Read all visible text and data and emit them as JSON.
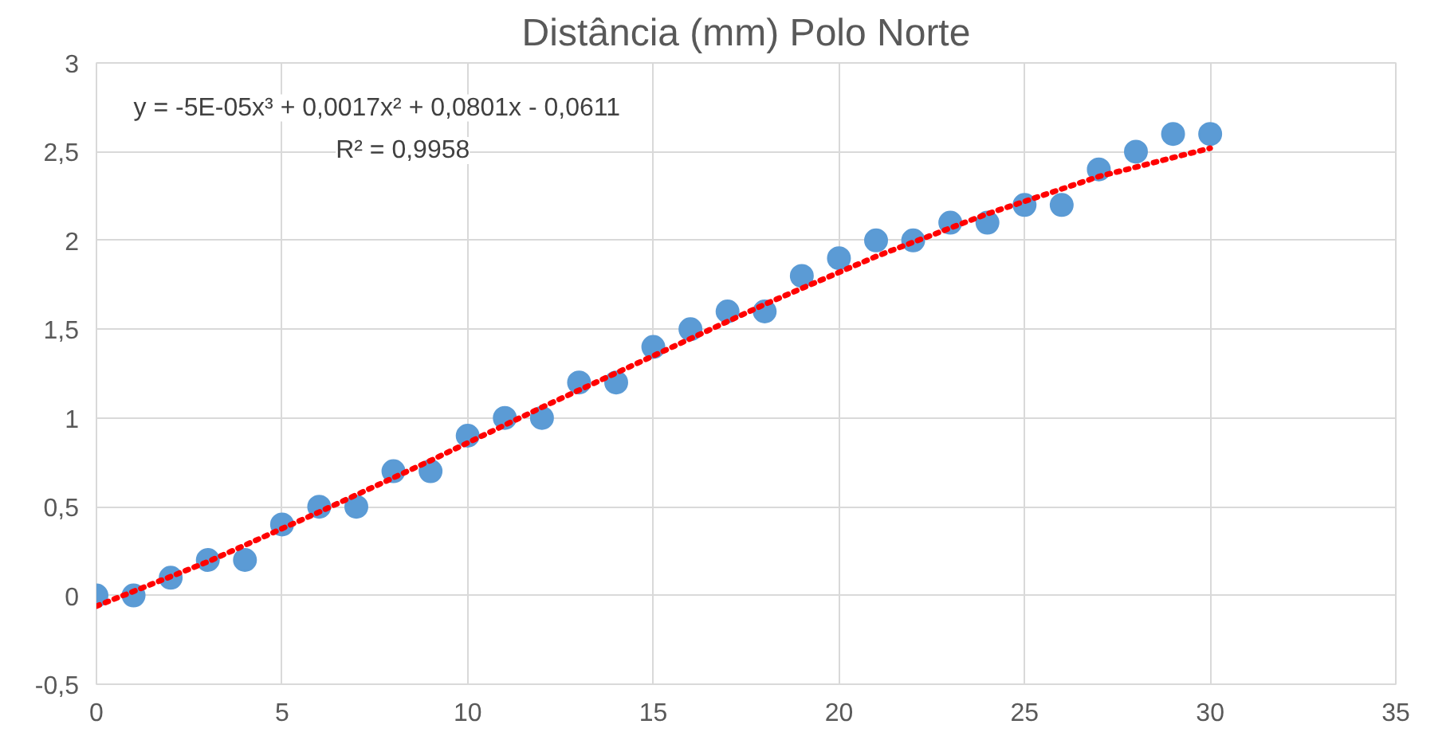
{
  "chart_data": {
    "type": "scatter",
    "title": "Distância (mm) Polo Norte",
    "xlim": [
      0,
      35
    ],
    "xticks": [
      0,
      5,
      10,
      15,
      20,
      25,
      30,
      35
    ],
    "ylim": [
      -0.5,
      3
    ],
    "yticks": [
      {
        "value": -0.5,
        "label": "-0,5"
      },
      0,
      {
        "value": 0.5,
        "label": "0,5"
      },
      1,
      {
        "value": 1.5,
        "label": "1,5"
      },
      2,
      {
        "value": 2.5,
        "label": "2,5"
      },
      3
    ],
    "grid": true,
    "annotations": [
      "y = -5E-05x³ + 0,0017x² + 0,0801x - 0,0611",
      "R² = 0,9958"
    ],
    "series": [
      {
        "marker": "circle",
        "color": "#5b9bd5",
        "x": [
          0,
          1,
          2,
          3,
          4,
          5,
          6,
          7,
          8,
          9,
          10,
          11,
          12,
          13,
          14,
          15,
          16,
          17,
          18,
          19,
          20,
          21,
          22,
          23,
          24,
          25,
          26,
          27,
          28,
          29,
          30
        ],
        "values": [
          0,
          0,
          0.1,
          0.2,
          0.2,
          0.4,
          0.5,
          0.5,
          0.7,
          0.7,
          0.9,
          1.0,
          1.0,
          1.2,
          1.2,
          1.4,
          1.5,
          1.6,
          1.6,
          1.8,
          1.9,
          2.0,
          2.0,
          2.1,
          2.1,
          2.2,
          2.2,
          2.4,
          2.5,
          2.6,
          2.6
        ]
      },
      {
        "type": "line",
        "color": "#ff0000",
        "line_style": "dotted",
        "x": [
          0,
          3,
          6,
          9,
          12,
          15,
          18,
          21,
          24,
          27,
          30
        ],
        "values": [
          -0.06,
          0.19,
          0.47,
          0.76,
          1.06,
          1.35,
          1.64,
          1.91,
          2.15,
          2.36,
          2.52
        ]
      }
    ]
  }
}
